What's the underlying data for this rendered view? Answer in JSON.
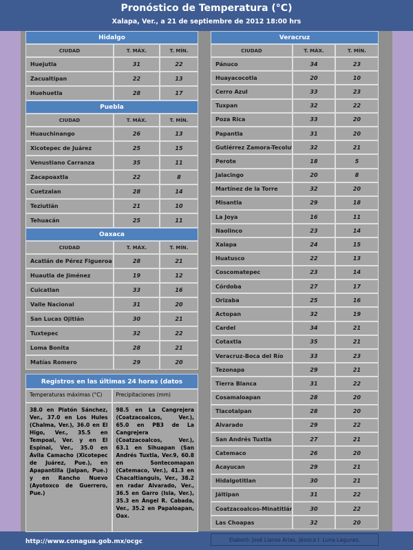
{
  "header": {
    "title": "Pronóstico de Temperatura (°C)",
    "subtitle": "Xalapa, Ver., a 21 de septiembre de 2012  18:00 hrs"
  },
  "sections": [
    {
      "title": "Hidalgo",
      "columns": [
        "CIUDAD",
        "T. MÁX.",
        "T. MÍN."
      ],
      "rows": [
        [
          "Huejutla",
          31,
          22
        ],
        [
          "Zacualtipan",
          22,
          13
        ],
        [
          "Huehuetla",
          28,
          17
        ]
      ]
    },
    {
      "title": "Puebla",
      "columns": [
        "CIUDAD",
        "T. MÁX.",
        "T. MÍN."
      ],
      "rows": [
        [
          "Huauchinango",
          26,
          13
        ],
        [
          "Xicotepec de Juárez",
          25,
          15
        ],
        [
          "Venustiano Carranza",
          35,
          11
        ],
        [
          "Zacapoaxtla",
          22,
          8
        ],
        [
          "Cuetzalan",
          28,
          14
        ],
        [
          "Teziutlán",
          21,
          10
        ],
        [
          "Tehuacán",
          25,
          11
        ]
      ]
    },
    {
      "title": "Oaxaca",
      "columns": [
        "CIUDAD",
        "T. MÁX.",
        "T. MÍN."
      ],
      "rows": [
        [
          "Acatlán de Pérez Figueroa",
          28,
          21
        ],
        [
          "Huautla de Jiménez",
          19,
          12
        ],
        [
          "Cuicatlan",
          33,
          16
        ],
        [
          "Valle Nacional",
          31,
          20
        ],
        [
          "San Lucas Ojitlán",
          30,
          21
        ],
        [
          "Tuxtepec",
          32,
          22
        ],
        [
          "Loma Bonita",
          28,
          21
        ],
        [
          "Matías Romero",
          29,
          20
        ]
      ]
    },
    {
      "title": "Veracruz",
      "columns": [
        "CIUDAD",
        "T. MÁX.",
        "T. MÍN."
      ],
      "rows": [
        [
          "Pánuco",
          34,
          23
        ],
        [
          "Huayacocotla",
          20,
          10
        ],
        [
          "Cerro Azul",
          33,
          23
        ],
        [
          "Tuxpan",
          32,
          22
        ],
        [
          "Poza Rica",
          33,
          20
        ],
        [
          "Papantla",
          31,
          20
        ],
        [
          "Gutiérrez Zamora-Tecolutla",
          32,
          21
        ],
        [
          "Perote",
          18,
          5
        ],
        [
          "Jalacingo",
          20,
          8
        ],
        [
          "Martínez de la Torre",
          32,
          20
        ],
        [
          "Misantla",
          29,
          18
        ],
        [
          "La Joya",
          16,
          11
        ],
        [
          "Naolinco",
          23,
          14
        ],
        [
          "Xalapa",
          24,
          15
        ],
        [
          "Huatusco",
          22,
          13
        ],
        [
          "Coscomatepec",
          23,
          14
        ],
        [
          "Córdoba",
          27,
          17
        ],
        [
          "Orizaba",
          25,
          16
        ],
        [
          "Actopan",
          32,
          19
        ],
        [
          "Cardel",
          34,
          21
        ],
        [
          "Cotaxtla",
          35,
          21
        ],
        [
          "Veracruz-Boca del Río",
          33,
          23
        ],
        [
          "Tezonapa",
          29,
          21
        ],
        [
          "Tierra Blanca",
          31,
          22
        ],
        [
          "Cosamaloapan",
          28,
          20
        ],
        [
          "Tlacotalpan",
          28,
          20
        ],
        [
          "Alvarado",
          29,
          22
        ],
        [
          "San Andrés Tuxtla",
          27,
          21
        ],
        [
          "Catemaco",
          26,
          20
        ],
        [
          "Acayucan",
          29,
          21
        ],
        [
          "Hidalgotitlan",
          30,
          21
        ],
        [
          "Jáltipan",
          31,
          22
        ],
        [
          "Coatzacoalcos-Minatitlán",
          30,
          22
        ],
        [
          "Las Choapas",
          32,
          20
        ]
      ]
    }
  ],
  "observed": {
    "title": "Registros en las últimas 24 horas (datos observados)",
    "columns": [
      "Temperaturas máximas (°C)",
      "Precipitaciones (mm)"
    ],
    "texts": [
      "38.0 en Platón Sánchez, Ver., 37.0 en Los Hules (Chalma, Ver.), 36.0 en El Higo, Ver., 35.5 en Tempoal, Ver. y en El Espinal, Ver., 35.0 en Ávila Camacho (Xicotepec de Juárez, Pue.), en Apapantilla (Jalpan, Pue.) y en Rancho Nuevo (Ayotoxco de Guerrero, Pue.)",
      "98.5 en La Cangrejera (Coatzacoalcos, Ver.), 65.0 en PB3 de La Cangrejera (Coatzacoalcos, Ver.), 63.1 en Sihuapan (San Andrés Tuxtla, Ver.9, 60.8 en Sontecomapan (Catemaco, Ver.), 41.3 en Chacaltianguis, Ver., 38.2 en radar Alvarado, Ver., 36.5 en Garro (Isla, Ver.), 35.3 en Ángel R. Cabada, Ver., 35.2 en Papaloapan, Oax."
    ]
  },
  "footer": {
    "url": "http://www.conagua.gob.mx/ocgc",
    "credit": "Elaboró: José Llanos Arias, Jéssica I. Luna Lagunes."
  }
}
